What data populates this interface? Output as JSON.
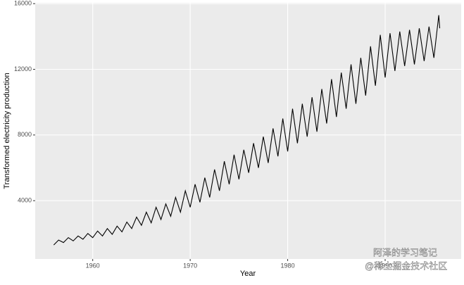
{
  "chart_data": {
    "type": "line",
    "x_label": "Year",
    "y_label": "Transformed electricity production",
    "x": [
      1956,
      1956.5,
      1957,
      1957.5,
      1958,
      1958.5,
      1959,
      1959.5,
      1960,
      1960.5,
      1961,
      1961.5,
      1962,
      1962.5,
      1963,
      1963.5,
      1964,
      1964.5,
      1965,
      1965.5,
      1966,
      1966.5,
      1967,
      1967.5,
      1968,
      1968.5,
      1969,
      1969.5,
      1970,
      1970.5,
      1971,
      1971.5,
      1972,
      1972.5,
      1973,
      1973.5,
      1974,
      1974.5,
      1975,
      1975.5,
      1976,
      1976.5,
      1977,
      1977.5,
      1978,
      1978.5,
      1979,
      1979.5,
      1980,
      1980.5,
      1981,
      1981.5,
      1982,
      1982.5,
      1983,
      1983.5,
      1984,
      1984.5,
      1985,
      1985.5,
      1986,
      1986.5,
      1987,
      1987.5,
      1988,
      1988.5,
      1989,
      1989.5,
      1990,
      1990.5,
      1991,
      1991.5,
      1992,
      1992.5,
      1993,
      1993.5,
      1994,
      1994.5,
      1995,
      1995.5,
      1995.6
    ],
    "series": [
      {
        "color": "#000000",
        "values": [
          1300,
          1600,
          1450,
          1750,
          1550,
          1850,
          1650,
          2000,
          1750,
          2150,
          1850,
          2300,
          1950,
          2450,
          2100,
          2700,
          2300,
          3000,
          2500,
          3300,
          2650,
          3600,
          2850,
          3800,
          3050,
          4200,
          3300,
          4600,
          3600,
          5000,
          3900,
          5400,
          4200,
          5900,
          4600,
          6400,
          5000,
          6800,
          5300,
          7100,
          5700,
          7500,
          6000,
          7900,
          6300,
          8400,
          6700,
          9000,
          7000,
          9600,
          7500,
          9900,
          7900,
          10300,
          8200,
          10800,
          8700,
          11400,
          9100,
          11800,
          9600,
          12300,
          9900,
          12700,
          10400,
          13400,
          11000,
          14100,
          11500,
          14200,
          11900,
          14300,
          12200,
          14400,
          12300,
          14500,
          12500,
          14600,
          12700,
          15300,
          14500
        ]
      }
    ],
    "xlim": [
      1954.1,
      1997.8
    ],
    "ylim": [
      450,
      16050
    ],
    "xticks": [
      1960,
      1970,
      1980,
      1990
    ],
    "yticks": [
      4000,
      8000,
      12000,
      16000
    ],
    "grid": true
  },
  "watermark": [
    "阿泽的学习笔记",
    "@稀土掘金技术社区"
  ]
}
